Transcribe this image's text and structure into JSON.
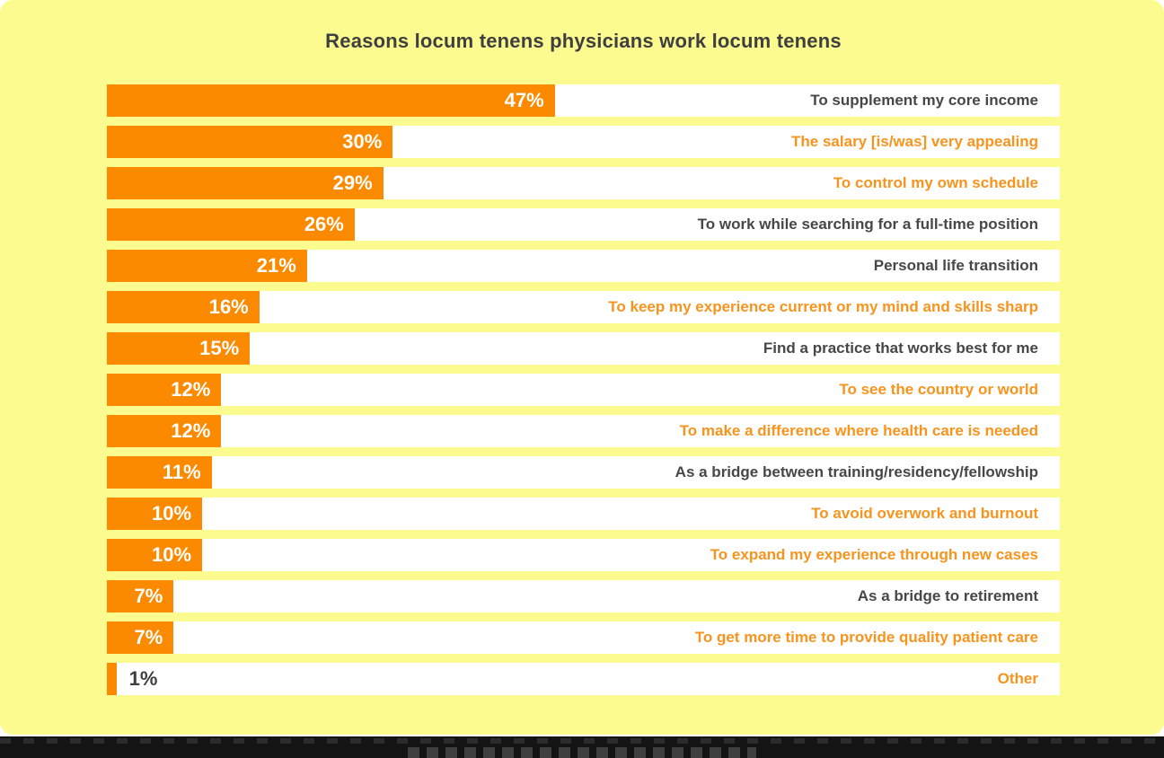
{
  "title": "Reasons locum tenens physicians work locum tenens",
  "colors": {
    "background": "#FBFB8F",
    "bar": "#FC8A00",
    "row_background": "#FFFFFF",
    "title_text": "#3F3F3F",
    "dark_label_text": "#474747",
    "orange_label_text": "#F7941E",
    "value_text_inside": "#FFFFFF",
    "footer_bar": "#141414"
  },
  "chart_data": {
    "type": "bar",
    "orientation": "horizontal",
    "title": "Reasons locum tenens physicians work locum tenens",
    "xlabel": "",
    "ylabel": "",
    "xlim": [
      0,
      100
    ],
    "grid": false,
    "legend": "none",
    "value_suffix": "%",
    "value_label_position": "inside-end",
    "categories": [
      "To supplement my core income",
      "The salary [is/was] very appealing",
      "To control my own schedule",
      "To work while searching for a full-time position",
      "Personal life transition",
      "To keep my experience current or my mind and skills sharp",
      "Find a practice that works best for me",
      "To see the country or world",
      "To make a difference where health care is needed",
      "As a bridge between training/residency/fellowship",
      "To avoid overwork and burnout",
      "To expand my experience through new cases",
      "As a bridge to retirement",
      "To get more time to provide quality patient care",
      "Other"
    ],
    "values": [
      47,
      30,
      29,
      26,
      21,
      16,
      15,
      12,
      12,
      11,
      10,
      10,
      7,
      7,
      1
    ],
    "value_labels": [
      "47%",
      "30%",
      "29%",
      "26%",
      "21%",
      "16%",
      "15%",
      "12%",
      "12%",
      "11%",
      "10%",
      "10%",
      "7%",
      "7%",
      "1%"
    ],
    "label_colors": [
      "dark",
      "orange",
      "orange",
      "dark",
      "dark",
      "orange",
      "dark",
      "orange",
      "orange",
      "dark",
      "orange",
      "orange",
      "dark",
      "orange",
      "orange"
    ]
  }
}
